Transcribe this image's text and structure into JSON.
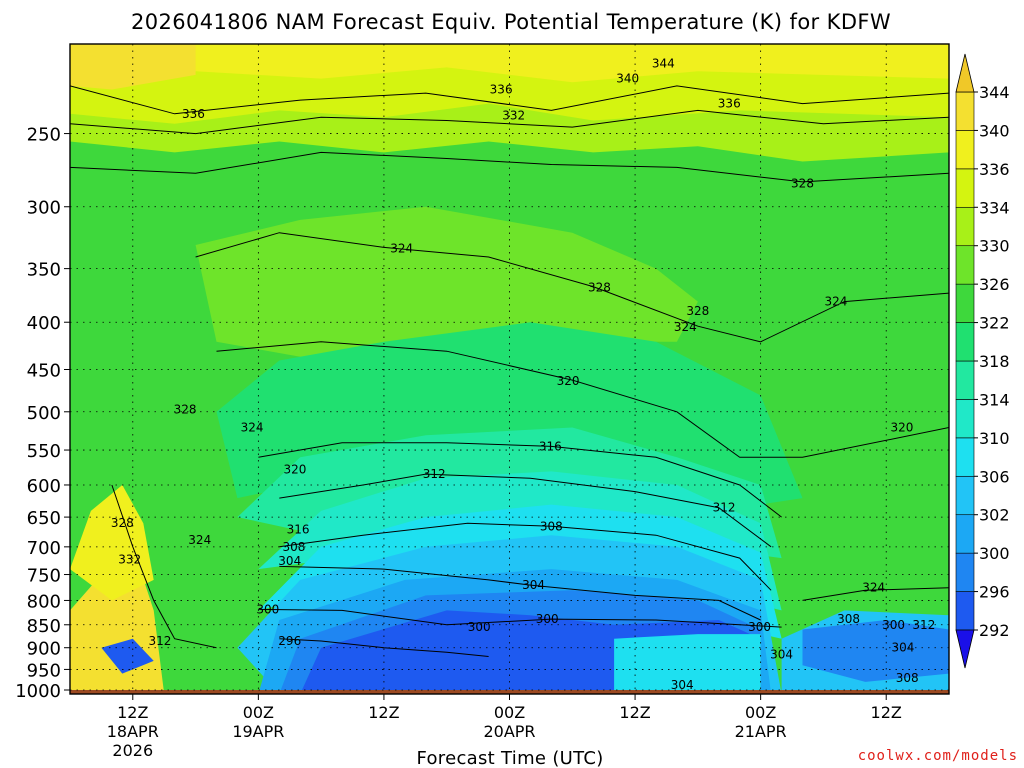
{
  "chart_data": {
    "type": "heatmap",
    "title": "2026041806 NAM Forecast Equiv. Potential Temperature (K) for KDFW",
    "xlabel": "Forecast Time (UTC)",
    "ylabel": "",
    "variable": "Equivalent Potential Temperature (K)",
    "y_axis": {
      "scale": "pressure (hPa)",
      "ticks": [
        250,
        300,
        350,
        400,
        450,
        500,
        550,
        600,
        650,
        700,
        750,
        800,
        850,
        900,
        950,
        1000
      ],
      "range": [
        200,
        1010
      ]
    },
    "x_axis": {
      "unit": "forecast hours from 2026-04-18 06Z",
      "range": [
        0,
        84
      ],
      "ticks": [
        {
          "hour": 6,
          "lines": [
            "12Z",
            "18APR",
            "2026"
          ]
        },
        {
          "hour": 18,
          "lines": [
            "00Z",
            "19APR"
          ]
        },
        {
          "hour": 30,
          "lines": [
            "12Z"
          ]
        },
        {
          "hour": 42,
          "lines": [
            "00Z",
            "20APR"
          ]
        },
        {
          "hour": 54,
          "lines": [
            "12Z"
          ]
        },
        {
          "hour": 66,
          "lines": [
            "00Z",
            "21APR"
          ]
        },
        {
          "hour": 78,
          "lines": [
            "12Z"
          ]
        }
      ]
    },
    "colorbar": {
      "levels": [
        292,
        296,
        300,
        302,
        306,
        310,
        314,
        318,
        322,
        326,
        330,
        334,
        336,
        340,
        344
      ],
      "colors": [
        "#1a10e8",
        "#1e5af0",
        "#1f86f2",
        "#1ca8f4",
        "#22c4f6",
        "#1ee0f0",
        "#20e8c8",
        "#22e8a0",
        "#20e070",
        "#3ed83c",
        "#6ee42a",
        "#a8f018",
        "#d4f410",
        "#f0f01e",
        "#f4e030",
        "#f0c828"
      ]
    },
    "contour_labels": [
      {
        "value": "344",
        "hour": 56.7,
        "p": 210
      },
      {
        "value": "340",
        "hour": 53.3,
        "p": 218
      },
      {
        "value": "336",
        "hour": 41.2,
        "p": 224
      },
      {
        "value": "336",
        "hour": 63.0,
        "p": 232
      },
      {
        "value": "336",
        "hour": 11.8,
        "p": 238
      },
      {
        "value": "332",
        "hour": 42.4,
        "p": 239
      },
      {
        "value": "328",
        "hour": 70.0,
        "p": 283
      },
      {
        "value": "324",
        "hour": 31.7,
        "p": 333
      },
      {
        "value": "328",
        "hour": 50.6,
        "p": 367
      },
      {
        "value": "328",
        "hour": 60.0,
        "p": 389
      },
      {
        "value": "324",
        "hour": 58.8,
        "p": 405
      },
      {
        "value": "324",
        "hour": 73.2,
        "p": 380
      },
      {
        "value": "320",
        "hour": 47.6,
        "p": 463
      },
      {
        "value": "328",
        "hour": 11.0,
        "p": 497
      },
      {
        "value": "324",
        "hour": 17.4,
        "p": 520
      },
      {
        "value": "320",
        "hour": 79.5,
        "p": 520
      },
      {
        "value": "316",
        "hour": 45.9,
        "p": 545
      },
      {
        "value": "320",
        "hour": 21.5,
        "p": 577
      },
      {
        "value": "312",
        "hour": 34.8,
        "p": 584
      },
      {
        "value": "312",
        "hour": 62.5,
        "p": 635
      },
      {
        "value": "328",
        "hour": 5.0,
        "p": 660
      },
      {
        "value": "308",
        "hour": 46.0,
        "p": 665
      },
      {
        "value": "316",
        "hour": 21.8,
        "p": 670
      },
      {
        "value": "324",
        "hour": 12.4,
        "p": 688
      },
      {
        "value": "308",
        "hour": 21.4,
        "p": 700
      },
      {
        "value": "332",
        "hour": 5.7,
        "p": 722
      },
      {
        "value": "304",
        "hour": 21.0,
        "p": 725
      },
      {
        "value": "304",
        "hour": 44.3,
        "p": 770
      },
      {
        "value": "324",
        "hour": 76.8,
        "p": 775
      },
      {
        "value": "300",
        "hour": 18.9,
        "p": 818
      },
      {
        "value": "300",
        "hour": 45.6,
        "p": 838
      },
      {
        "value": "308",
        "hour": 74.4,
        "p": 838
      },
      {
        "value": "300",
        "hour": 39.1,
        "p": 855
      },
      {
        "value": "300",
        "hour": 65.9,
        "p": 855
      },
      {
        "value": "300",
        "hour": 78.7,
        "p": 850
      },
      {
        "value": "312",
        "hour": 81.6,
        "p": 850
      },
      {
        "value": "312",
        "hour": 8.6,
        "p": 885
      },
      {
        "value": "296",
        "hour": 21.0,
        "p": 885
      },
      {
        "value": "304",
        "hour": 79.6,
        "p": 900
      },
      {
        "value": "304",
        "hour": 68.0,
        "p": 915
      },
      {
        "value": "308",
        "hour": 80.0,
        "p": 970
      },
      {
        "value": "304",
        "hour": 58.5,
        "p": 988
      }
    ]
  },
  "credit": "coolwx.com/models"
}
